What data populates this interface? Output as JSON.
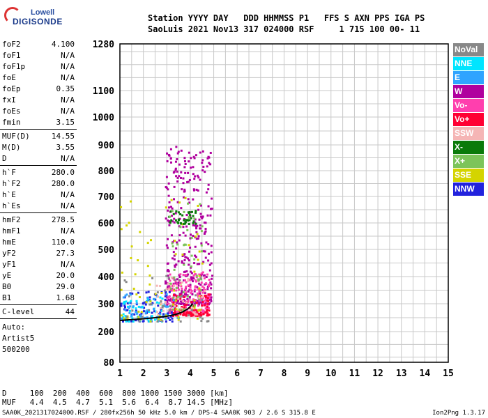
{
  "logo": {
    "top": "Lowell",
    "bottom": "DIGISONDE"
  },
  "header": {
    "line1": "Station YYYY DAY   DDD HHMMSS P1   FFS S AXN PPS IGA PS",
    "line2": "SaoLuis 2021 Nov13 317 024000 RSF     1 715 100 00- 11"
  },
  "params": [
    {
      "k": "foF2",
      "v": "4.100"
    },
    {
      "k": "foF1",
      "v": "N/A"
    },
    {
      "k": "foF1p",
      "v": "N/A"
    },
    {
      "k": "foE",
      "v": "N/A"
    },
    {
      "k": "foEp",
      "v": "0.35"
    },
    {
      "k": "fxI",
      "v": "N/A"
    },
    {
      "k": "foEs",
      "v": "N/A"
    },
    {
      "k": "fmin",
      "v": "3.15"
    },
    {
      "k": "MUF(D)",
      "v": "14.55"
    },
    {
      "k": "M(D)",
      "v": "3.55"
    },
    {
      "k": "D",
      "v": "N/A"
    },
    {
      "k": "h`F",
      "v": "280.0"
    },
    {
      "k": "h`F2",
      "v": "280.0"
    },
    {
      "k": "h`E",
      "v": "N/A"
    },
    {
      "k": "h`Es",
      "v": "N/A"
    },
    {
      "k": "hmF2",
      "v": "278.5"
    },
    {
      "k": "hmF1",
      "v": "N/A"
    },
    {
      "k": "hmE",
      "v": "110.0"
    },
    {
      "k": "yF2",
      "v": "27.3"
    },
    {
      "k": "yF1",
      "v": "N/A"
    },
    {
      "k": "yE",
      "v": "20.0"
    },
    {
      "k": "B0",
      "v": "29.0"
    },
    {
      "k": "B1",
      "v": "1.68"
    },
    {
      "k": "C-level",
      "v": "44"
    },
    {
      "k": "Auto:",
      "v": ""
    },
    {
      "k": "Artist5",
      "v": ""
    },
    {
      "k": "500200",
      "v": ""
    }
  ],
  "legend": [
    {
      "label": "NoVal",
      "color": "#888888"
    },
    {
      "label": "NNE",
      "color": "#00e5ff"
    },
    {
      "label": "E",
      "color": "#2fa4ff"
    },
    {
      "label": "W",
      "color": "#b0009e"
    },
    {
      "label": "Vo-",
      "color": "#ff3fae"
    },
    {
      "label": "Vo+",
      "color": "#ff0033"
    },
    {
      "label": "SSW",
      "color": "#f5b5b5"
    },
    {
      "label": "X-",
      "color": "#0a7a0a"
    },
    {
      "label": "X+",
      "color": "#7cc45a"
    },
    {
      "label": "SSE",
      "color": "#d4d400"
    },
    {
      "label": "NNW",
      "color": "#2222dd"
    }
  ],
  "footer": {
    "d_row": "D     100  200  400  600  800 1000 1500 3000 [km]",
    "muf_row": "MUF   4.4  4.5  4.7  5.1  5.6  6.4  8.7 14.5 [MHz]",
    "file_line": "SAA0K_2021317024000.RSF / 280fx256h 50 kHz 5.0 km / DPS-4 SAA0K 903 / 2.6 S 315.8 E",
    "version": "Ion2Png 1.3.17"
  },
  "chart_data": {
    "type": "scatter",
    "x_ticks": [
      "1",
      "2",
      "3",
      "4",
      "5",
      "6",
      "7",
      "8",
      "9",
      "10",
      "11",
      "12",
      "13",
      "14",
      "15"
    ],
    "y_ticks": [
      "80",
      "200",
      "300",
      "400",
      "500",
      "600",
      "700",
      "800",
      "900",
      "1000",
      "1100",
      "1280"
    ],
    "xlim": [
      1,
      15
    ],
    "ylim": [
      80,
      1280
    ],
    "y_tick_values": [
      80,
      200,
      300,
      400,
      500,
      600,
      700,
      800,
      900,
      1000,
      1100,
      1280
    ],
    "grid": true,
    "trace": {
      "x": [
        1.0,
        1.5,
        2.0,
        2.5,
        3.0,
        3.3,
        3.5,
        3.7,
        3.9,
        4.0,
        4.1
      ],
      "y": [
        240,
        243,
        246,
        250,
        255,
        260,
        265,
        272,
        282,
        290,
        300
      ]
    },
    "clusters": [
      {
        "color": "#b0009e",
        "xr": [
          2.9,
          4.9
        ],
        "yr": [
          300,
          900
        ],
        "n": 380
      },
      {
        "color": "#ff3fae",
        "xr": [
          3.0,
          4.8
        ],
        "yr": [
          270,
          420
        ],
        "n": 160
      },
      {
        "color": "#ff0033",
        "xr": [
          3.2,
          4.8
        ],
        "yr": [
          260,
          340
        ],
        "n": 110
      },
      {
        "color": "#2222dd",
        "xr": [
          1.0,
          3.2
        ],
        "yr": [
          240,
          350
        ],
        "n": 90
      },
      {
        "color": "#00e5ff",
        "xr": [
          1.0,
          3.0
        ],
        "yr": [
          240,
          330
        ],
        "n": 50
      },
      {
        "color": "#2fa4ff",
        "xr": [
          1.0,
          3.5
        ],
        "yr": [
          250,
          340
        ],
        "n": 50
      },
      {
        "color": "#d4d400",
        "xr": [
          1.0,
          4.5
        ],
        "yr": [
          240,
          700
        ],
        "n": 70
      },
      {
        "color": "#0a7a0a",
        "xr": [
          3.0,
          4.2
        ],
        "yr": [
          600,
          650
        ],
        "n": 40
      },
      {
        "color": "#7cc45a",
        "xr": [
          3.0,
          4.5
        ],
        "yr": [
          280,
          680
        ],
        "n": 50
      },
      {
        "color": "#f5b5b5",
        "xr": [
          2.5,
          4.8
        ],
        "yr": [
          260,
          400
        ],
        "n": 40
      },
      {
        "color": "#888888",
        "xr": [
          1.0,
          4.8
        ],
        "yr": [
          240,
          420
        ],
        "n": 40
      }
    ]
  }
}
